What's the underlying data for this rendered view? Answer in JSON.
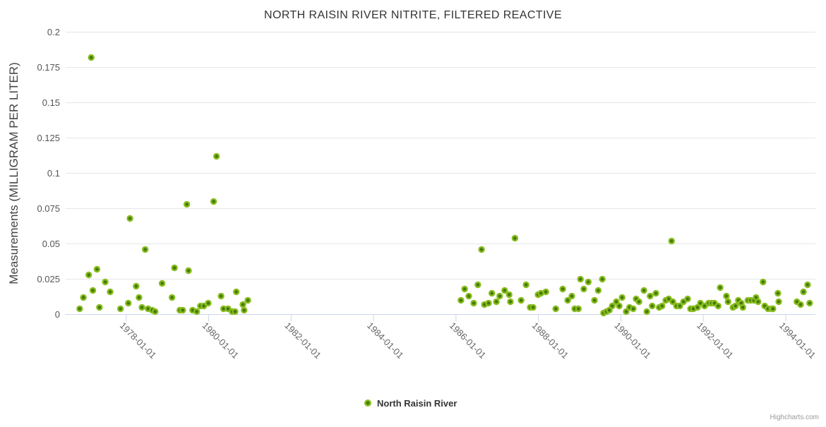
{
  "credit": "Highcharts.com",
  "legend": {
    "label": "North Raisin River"
  },
  "colors": {
    "background": "#ffffff",
    "grid": "#e6e6e6",
    "axis_line": "#ccd6eb",
    "title_text": "#333333",
    "y_tick_text": "#555555",
    "x_tick_text": "#666666",
    "credit_text": "#999999",
    "marker_outer": "#8abc20",
    "marker_inner": "#3f7a08"
  },
  "chart_data": {
    "type": "scatter",
    "title": "NORTH RAISIN RIVER NITRITE, FILTERED REACTIVE",
    "xlabel": "",
    "ylabel": "Measurements (MILLIGRAM PER LITER)",
    "xlim": [
      1976.53,
      1994.72
    ],
    "ylim": [
      0,
      0.2
    ],
    "grid": "horizontal",
    "legend_position": "bottom-center",
    "x_ticks": [
      {
        "year": 1978,
        "label": "1978-01-01"
      },
      {
        "year": 1980,
        "label": "1980-01-01"
      },
      {
        "year": 1982,
        "label": "1982-01-01"
      },
      {
        "year": 1984,
        "label": "1984-01-01"
      },
      {
        "year": 1986,
        "label": "1986-01-01"
      },
      {
        "year": 1988,
        "label": "1988-01-01"
      },
      {
        "year": 1990,
        "label": "1990-01-01"
      },
      {
        "year": 1992,
        "label": "1992-01-01"
      },
      {
        "year": 1994,
        "label": "1994-01-01"
      }
    ],
    "y_ticks": [
      {
        "value": 0,
        "label": "0"
      },
      {
        "value": 0.025,
        "label": "0.025"
      },
      {
        "value": 0.05,
        "label": "0.05"
      },
      {
        "value": 0.075,
        "label": "0.075"
      },
      {
        "value": 0.1,
        "label": "0.1"
      },
      {
        "value": 0.125,
        "label": "0.125"
      },
      {
        "value": 0.15,
        "label": "0.15"
      },
      {
        "value": 0.175,
        "label": "0.175"
      },
      {
        "value": 0.2,
        "label": "0.2"
      }
    ],
    "series": [
      {
        "name": "North Raisin River",
        "points": [
          [
            1976.87,
            0.004
          ],
          [
            1976.96,
            0.012
          ],
          [
            1977.09,
            0.028
          ],
          [
            1977.15,
            0.182
          ],
          [
            1977.19,
            0.017
          ],
          [
            1977.29,
            0.032
          ],
          [
            1977.35,
            0.005
          ],
          [
            1977.49,
            0.023
          ],
          [
            1977.61,
            0.016
          ],
          [
            1977.86,
            0.004
          ],
          [
            1978.05,
            0.008
          ],
          [
            1978.09,
            0.068
          ],
          [
            1978.24,
            0.02
          ],
          [
            1978.31,
            0.012
          ],
          [
            1978.38,
            0.005
          ],
          [
            1978.46,
            0.046
          ],
          [
            1978.53,
            0.004
          ],
          [
            1978.63,
            0.003
          ],
          [
            1978.7,
            0.002
          ],
          [
            1978.87,
            0.022
          ],
          [
            1979.11,
            0.012
          ],
          [
            1979.17,
            0.033
          ],
          [
            1979.3,
            0.003
          ],
          [
            1979.37,
            0.003
          ],
          [
            1979.47,
            0.078
          ],
          [
            1979.51,
            0.031
          ],
          [
            1979.61,
            0.003
          ],
          [
            1979.71,
            0.002
          ],
          [
            1979.8,
            0.006
          ],
          [
            1979.88,
            0.006
          ],
          [
            1979.99,
            0.008
          ],
          [
            1980.12,
            0.08
          ],
          [
            1980.19,
            0.112
          ],
          [
            1980.3,
            0.013
          ],
          [
            1980.36,
            0.004
          ],
          [
            1980.47,
            0.004
          ],
          [
            1980.57,
            0.002
          ],
          [
            1980.64,
            0.002
          ],
          [
            1980.67,
            0.016
          ],
          [
            1980.83,
            0.007
          ],
          [
            1980.86,
            0.003
          ],
          [
            1980.95,
            0.01
          ],
          [
            1986.12,
            0.01
          ],
          [
            1986.21,
            0.018
          ],
          [
            1986.31,
            0.013
          ],
          [
            1986.43,
            0.008
          ],
          [
            1986.53,
            0.021
          ],
          [
            1986.62,
            0.046
          ],
          [
            1986.69,
            0.007
          ],
          [
            1986.79,
            0.008
          ],
          [
            1986.87,
            0.015
          ],
          [
            1986.98,
            0.009
          ],
          [
            1987.06,
            0.013
          ],
          [
            1987.18,
            0.017
          ],
          [
            1987.29,
            0.014
          ],
          [
            1987.32,
            0.009
          ],
          [
            1987.43,
            0.054
          ],
          [
            1987.58,
            0.01
          ],
          [
            1987.7,
            0.021
          ],
          [
            1987.8,
            0.005
          ],
          [
            1987.87,
            0.005
          ],
          [
            1987.99,
            0.014
          ],
          [
            1988.06,
            0.015
          ],
          [
            1988.18,
            0.016
          ],
          [
            1988.42,
            0.004
          ],
          [
            1988.59,
            0.018
          ],
          [
            1988.71,
            0.01
          ],
          [
            1988.81,
            0.013
          ],
          [
            1988.88,
            0.004
          ],
          [
            1988.97,
            0.004
          ],
          [
            1989.02,
            0.025
          ],
          [
            1989.1,
            0.018
          ],
          [
            1989.21,
            0.023
          ],
          [
            1989.36,
            0.01
          ],
          [
            1989.45,
            0.017
          ],
          [
            1989.55,
            0.025
          ],
          [
            1989.58,
            0.001
          ],
          [
            1989.65,
            0.002
          ],
          [
            1989.72,
            0.003
          ],
          [
            1989.79,
            0.006
          ],
          [
            1989.89,
            0.009
          ],
          [
            1989.96,
            0.006
          ],
          [
            1990.03,
            0.012
          ],
          [
            1990.13,
            0.002
          ],
          [
            1990.21,
            0.005
          ],
          [
            1990.3,
            0.004
          ],
          [
            1990.37,
            0.011
          ],
          [
            1990.44,
            0.009
          ],
          [
            1990.56,
            0.017
          ],
          [
            1990.63,
            0.002
          ],
          [
            1990.71,
            0.013
          ],
          [
            1990.76,
            0.006
          ],
          [
            1990.85,
            0.015
          ],
          [
            1990.93,
            0.005
          ],
          [
            1991.0,
            0.006
          ],
          [
            1991.09,
            0.01
          ],
          [
            1991.16,
            0.011
          ],
          [
            1991.23,
            0.052
          ],
          [
            1991.26,
            0.009
          ],
          [
            1991.35,
            0.006
          ],
          [
            1991.43,
            0.006
          ],
          [
            1991.52,
            0.009
          ],
          [
            1991.62,
            0.011
          ],
          [
            1991.69,
            0.004
          ],
          [
            1991.76,
            0.004
          ],
          [
            1991.86,
            0.005
          ],
          [
            1991.93,
            0.008
          ],
          [
            1992.03,
            0.006
          ],
          [
            1992.13,
            0.008
          ],
          [
            1992.2,
            0.008
          ],
          [
            1992.27,
            0.008
          ],
          [
            1992.36,
            0.006
          ],
          [
            1992.41,
            0.019
          ],
          [
            1992.56,
            0.013
          ],
          [
            1992.6,
            0.009
          ],
          [
            1992.72,
            0.005
          ],
          [
            1992.78,
            0.006
          ],
          [
            1992.85,
            0.01
          ],
          [
            1992.92,
            0.008
          ],
          [
            1992.96,
            0.005
          ],
          [
            1993.08,
            0.01
          ],
          [
            1993.15,
            0.01
          ],
          [
            1993.23,
            0.01
          ],
          [
            1993.28,
            0.012
          ],
          [
            1993.33,
            0.009
          ],
          [
            1993.45,
            0.023
          ],
          [
            1993.49,
            0.006
          ],
          [
            1993.57,
            0.004
          ],
          [
            1993.66,
            0.004
          ],
          [
            1993.69,
            0.004
          ],
          [
            1993.81,
            0.015
          ],
          [
            1993.83,
            0.009
          ],
          [
            1994.27,
            0.009
          ],
          [
            1994.36,
            0.007
          ],
          [
            1994.43,
            0.016
          ],
          [
            1994.53,
            0.021
          ],
          [
            1994.58,
            0.008
          ]
        ]
      }
    ]
  }
}
